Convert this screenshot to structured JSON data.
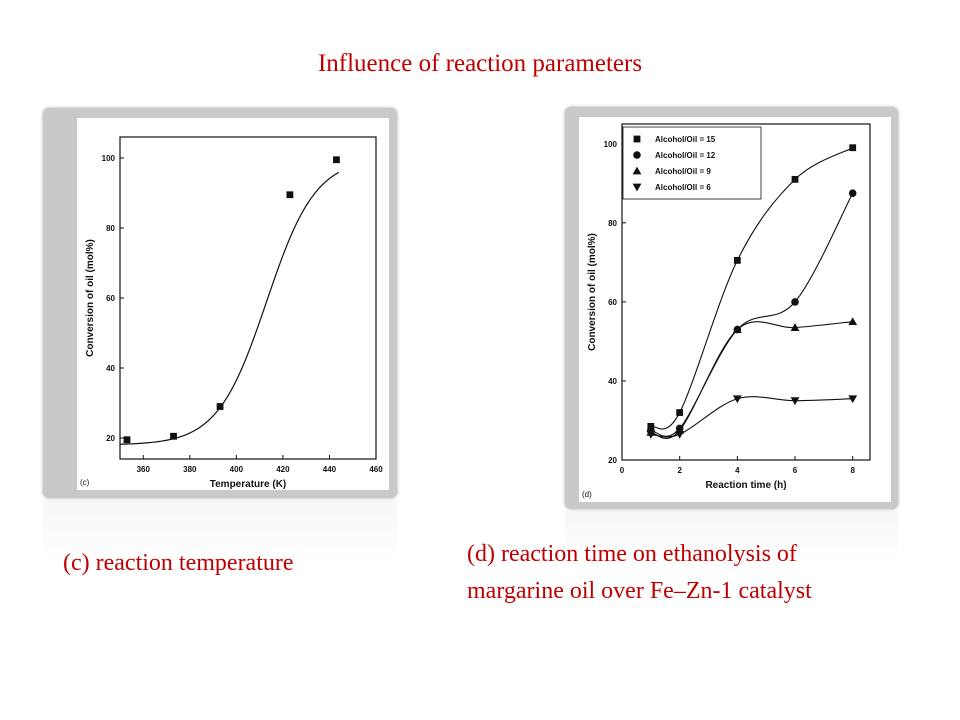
{
  "slide": {
    "title": "Influence of reaction parameters",
    "caption_c": "(c) reaction temperature",
    "caption_d_line1": "(d) reaction time on ethanolysis of",
    "caption_d_line2": "margarine oil over Fe–Zn-1 catalyst",
    "title_color": "#c00000"
  },
  "chart_data": [
    {
      "type": "scatter",
      "panel_label": "(c)",
      "xlabel": "Temperature (K)",
      "ylabel": "Conversion of oil (mol%)",
      "xlim": [
        350,
        460
      ],
      "ylim": [
        14,
        106
      ],
      "xticks": [
        360,
        380,
        400,
        420,
        440,
        460
      ],
      "yticks": [
        20,
        40,
        60,
        80,
        100
      ],
      "marker": "square",
      "fit_line": true,
      "x": [
        353,
        373,
        393,
        423,
        443
      ],
      "y": [
        19.5,
        20.5,
        29,
        89.5,
        99.5
      ]
    },
    {
      "type": "scatter",
      "panel_label": "(d)",
      "xlabel": "Reaction time (h)",
      "ylabel": "Conversion of oil (mol%)",
      "xlim": [
        0,
        8.6
      ],
      "ylim": [
        20,
        105
      ],
      "xticks": [
        0,
        2,
        4,
        6,
        8
      ],
      "yticks": [
        20,
        40,
        60,
        80,
        100
      ],
      "legend_position": "top-left",
      "fit_line": true,
      "series": [
        {
          "name": "Alcohol/Oil = 15",
          "marker": "square",
          "x": [
            1,
            2,
            4,
            6,
            8
          ],
          "y": [
            28.5,
            32,
            70.5,
            91,
            99
          ]
        },
        {
          "name": "Alcohol/Oil = 12",
          "marker": "circle",
          "x": [
            1,
            2,
            4,
            6,
            8
          ],
          "y": [
            27.5,
            28,
            53,
            60,
            87.5
          ]
        },
        {
          "name": "Alcohol/Oil = 9",
          "marker": "triangle-up",
          "x": [
            1,
            2,
            4,
            6,
            8
          ],
          "y": [
            27,
            27.5,
            53,
            53.5,
            55
          ]
        },
        {
          "name": "Alcohol/OIl = 6",
          "marker": "triangle-down",
          "x": [
            1,
            2,
            4,
            6,
            8
          ],
          "y": [
            26.5,
            26.5,
            35.5,
            35,
            35.5
          ]
        }
      ]
    }
  ]
}
